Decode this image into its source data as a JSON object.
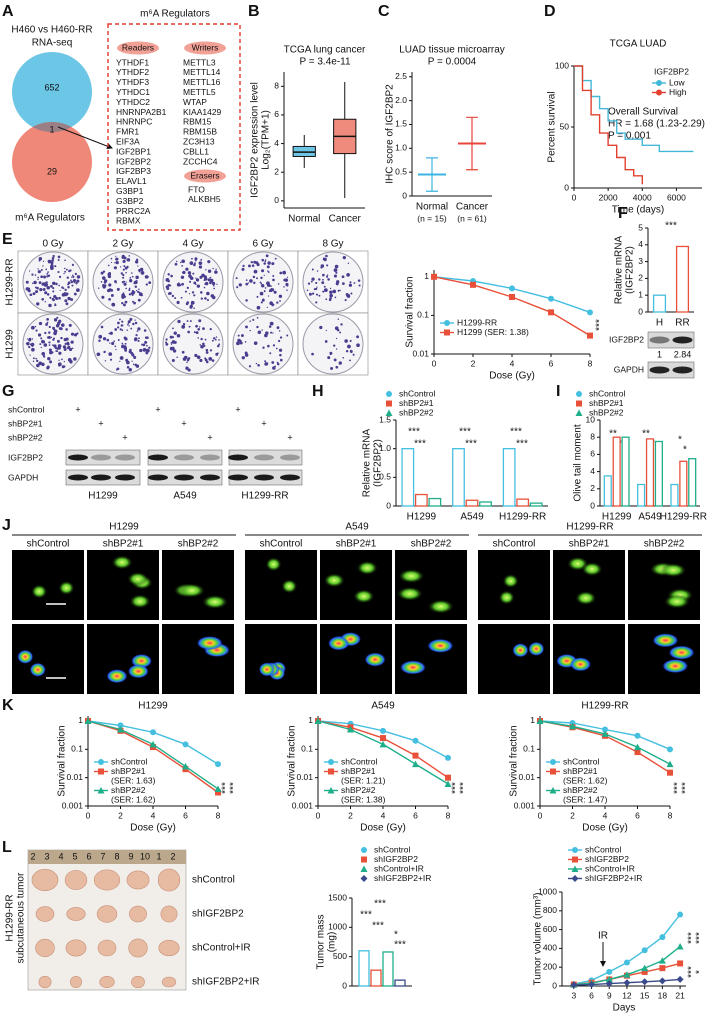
{
  "figure": {
    "A": {
      "label": "A",
      "heading": [
        "H460 vs H460-RR",
        "RNA-seq"
      ],
      "venn": [
        652,
        1,
        29
      ],
      "venn_label": "m⁶A Regulators",
      "box_title": "m⁶A Regulators",
      "highlight": "IGF2BP2",
      "groups": [
        {
          "name": "Readers",
          "items": [
            "YTHDF1",
            "YTHDF2",
            "YTHDF3",
            "YTHDC1",
            "YTHDC2",
            "HNRNPA2B1",
            "HNRNPC",
            "FMR1",
            "EIF3A",
            "IGF2BP1",
            "IGF2BP2",
            "IGF2BP3",
            "ELAVL1",
            "G3BP1",
            "G3BP2",
            "PRRC2A",
            "RBMX"
          ]
        },
        {
          "name": "Writers",
          "items": [
            "METTL3",
            "METTL14",
            "METTL16",
            "METTL5",
            "WTAP",
            "KIAA1429",
            "RBM15",
            "RBM15B",
            "ZC3H13",
            "CBLL1",
            "ZCCHC4"
          ]
        },
        {
          "name": "Erasers",
          "items": [
            "FTO",
            "ALKBH5"
          ]
        }
      ]
    },
    "E": {
      "label": "E",
      "doses": [
        "0 Gy",
        "2 Gy",
        "4 Gy",
        "6 Gy",
        "8 Gy"
      ],
      "rows": [
        "H1299-RR",
        "H1299"
      ]
    },
    "F": {
      "blot": [
        "IGF2BP2",
        "GAPDH"
      ],
      "quant": [
        1,
        2.84
      ]
    },
    "G": {
      "label": "G",
      "conditions": [
        "shControl",
        "shBP2#1",
        "shBP2#2"
      ],
      "mark": "+",
      "blot": [
        "IGF2BP2",
        "GAPDH"
      ],
      "cells": [
        "H1299",
        "A549",
        "H1299-RR"
      ]
    },
    "J": {
      "label": "J",
      "cells": [
        "H1299",
        "A549",
        "H1299-RR"
      ],
      "conditions": [
        "shControl",
        "shBP2#1",
        "shBP2#2"
      ]
    },
    "K": {
      "label": "K"
    },
    "L": {
      "label": "L",
      "side_label": [
        "H1299-RR",
        "subcutaneous tumor"
      ],
      "ruler": [
        "2",
        "3",
        "4",
        "5",
        "6",
        "7",
        "8",
        "9",
        "10",
        "1",
        "2"
      ],
      "groups": [
        "shControl",
        "shIGF2BP2",
        "shControl+IR",
        "shIGF2BP2+IR"
      ]
    }
  },
  "chart_data": [
    {
      "type": "box",
      "label": "B",
      "title": "TCGA lung cancer",
      "ylabel": [
        "IGF2BP2 expression level",
        "Log₂(TPM+1)"
      ],
      "categories": [
        "Normal",
        "Cancer"
      ],
      "boxes": [
        {
          "min": 2.3,
          "q1": 3.1,
          "median": 3.4,
          "q3": 3.8,
          "max": 4.6
        },
        {
          "min": 0.2,
          "q1": 3.3,
          "median": 4.5,
          "q3": 5.7,
          "max": 8.3
        }
      ],
      "colors": [
        "#6ec6e6",
        "#ee8b7c"
      ],
      "ylim": [
        -0.5,
        9
      ],
      "yticks": [
        0,
        2,
        4,
        6,
        8
      ],
      "annotations": [
        "P = 3.4e-11"
      ]
    },
    {
      "type": "meansd",
      "label": "C",
      "title": "LUAD tissue microarray",
      "ylabel": "IHC score of IGF2BP2",
      "categories": [
        "Normal",
        "Cancer"
      ],
      "n_labels": [
        "(n = 15)",
        "(n = 61)"
      ],
      "means": [
        0.45,
        1.1
      ],
      "sd": [
        0.35,
        0.55
      ],
      "colors": [
        "#3bb4e5",
        "#e8443a"
      ],
      "ylim": [
        0,
        2.6
      ],
      "yticks": [
        0,
        0.5,
        {
          "value": 1,
          "label": "1.0"
        },
        1.5,
        {
          "value": 2,
          "label": "2.0"
        },
        2.5
      ],
      "annotations": [
        "P = 0.0004"
      ]
    },
    {
      "type": "step",
      "label": "D",
      "title": "TCGA LUAD",
      "ylabel": "Percent survival",
      "xlabel": "Time (days)",
      "legend_title": "IGF2BP2",
      "series": [
        {
          "name": "Low",
          "color": "#45b8d8",
          "marker": "circle",
          "x": [
            0,
            500,
            1000,
            1500,
            2000,
            2500,
            3000,
            4000,
            5000,
            7000
          ],
          "values": [
            100,
            88,
            75,
            65,
            55,
            45,
            40,
            35,
            30,
            30
          ]
        },
        {
          "name": "High",
          "color": "#e3402f",
          "marker": "circle",
          "x": [
            0,
            500,
            1000,
            1500,
            2000,
            2500,
            3000,
            3500,
            4000
          ],
          "values": [
            100,
            80,
            60,
            45,
            35,
            25,
            15,
            10,
            3
          ]
        }
      ],
      "xlim": [
        0,
        7500
      ],
      "xticks": [
        0,
        2000,
        4000,
        6000
      ],
      "ylim": [
        0,
        100
      ],
      "yticks": [
        0,
        50,
        100
      ],
      "annotations": [
        "Overall Survival",
        "HR = 1.68 (1.23-2.29)",
        "P = 0.001"
      ]
    },
    {
      "type": "line",
      "log": true,
      "ylabel": "Survival fraction",
      "xlabel": "Dose (Gy)",
      "x": [
        0,
        2,
        4,
        6,
        8
      ],
      "series": [
        {
          "name": "H1299-RR",
          "color": "#45bfe0",
          "marker": "circle",
          "values": [
            1,
            0.78,
            0.5,
            0.27,
            0.12
          ]
        },
        {
          "name": "H1299 (SER: 1.38)",
          "color": "#e8503a",
          "marker": "square",
          "values": [
            1,
            0.62,
            0.3,
            0.12,
            0.03
          ]
        }
      ],
      "xlim": [
        0,
        8
      ],
      "xticks": [
        0,
        2,
        4,
        6,
        8
      ],
      "ylim": [
        0.01,
        1.5
      ],
      "yticks": [
        0.01,
        0.1,
        1
      ],
      "annotations": [
        "***"
      ]
    },
    {
      "type": "bar",
      "label": "F",
      "ylabel": [
        "Relative mRNA",
        "(IGF2BP2)"
      ],
      "categories": [
        "H",
        "RR"
      ],
      "values": [
        1,
        3.9
      ],
      "colors": [
        "#45bfe0",
        "#e8503a"
      ],
      "ylim": [
        0,
        5
      ],
      "yticks": [
        0,
        1,
        2,
        3,
        4,
        5
      ],
      "annotations": [
        "***"
      ]
    },
    {
      "type": "bar",
      "label": "H",
      "ylabel": [
        "Relative mRNA",
        "(IGF2BP2)"
      ],
      "categories": [
        "H1299",
        "A549",
        "H1299-RR"
      ],
      "series": [
        {
          "name": "shControl",
          "color": "#45bfe0",
          "marker": "circle",
          "values": [
            1,
            1,
            1
          ]
        },
        {
          "name": "shBP2#1",
          "color": "#e8503a",
          "marker": "square",
          "values": [
            0.2,
            0.1,
            0.12
          ]
        },
        {
          "name": "shBP2#2",
          "color": "#1fae8a",
          "marker": "triangle",
          "values": [
            0.13,
            0.07,
            0.05
          ]
        }
      ],
      "ylim": [
        0,
        1.5
      ],
      "yticks": [
        0,
        0.5,
        {
          "value": 1,
          "label": "1.0"
        },
        1.5
      ],
      "annotations": [
        "***",
        "***",
        "***",
        "***",
        "***",
        "***"
      ]
    },
    {
      "type": "bar",
      "label": "I",
      "ylabel": "Olive tail moment",
      "categories": [
        "H1299",
        "A549",
        "H1299-RR"
      ],
      "series": [
        {
          "name": "shControl",
          "color": "#45bfe0",
          "marker": "circle",
          "values": [
            3.5,
            2.5,
            2.5
          ]
        },
        {
          "name": "shBP2#1",
          "color": "#e8503a",
          "marker": "square",
          "values": [
            8,
            7.8,
            5.2
          ]
        },
        {
          "name": "shBP2#2",
          "color": "#1fae8a",
          "marker": "triangle",
          "values": [
            8,
            7.5,
            5.5
          ]
        }
      ],
      "ylim": [
        0,
        10
      ],
      "yticks": [
        0,
        2,
        4,
        6,
        8,
        10
      ],
      "annotations": [
        "**",
        "**",
        "**",
        "**",
        "*",
        "*"
      ]
    },
    {
      "type": "line",
      "log": true,
      "title": "H1299",
      "ylabel": "Survival fraction",
      "xlabel": "Dose (Gy)",
      "x": [
        0,
        2,
        4,
        6,
        8
      ],
      "series": [
        {
          "name": "shControl",
          "color": "#45bfe0",
          "marker": "circle",
          "values": [
            1,
            0.7,
            0.4,
            0.15,
            0.03
          ]
        },
        {
          "name": "shBP2#1",
          "ser_label": "(SER: 1.63)",
          "color": "#e8503a",
          "marker": "square",
          "values": [
            1,
            0.45,
            0.12,
            0.02,
            0.003
          ]
        },
        {
          "name": "shBP2#2",
          "ser_label": "(SER: 1.62)",
          "color": "#1fae8a",
          "marker": "triangle",
          "values": [
            1,
            0.5,
            0.15,
            0.025,
            0.004
          ]
        }
      ],
      "xlim": [
        0,
        8
      ],
      "xticks": [
        0,
        2,
        4,
        6,
        8
      ],
      "ylim": [
        0.001,
        1.5
      ],
      "yticks": [
        0.001,
        0.01,
        0.1,
        1
      ],
      "annotations": [
        "***",
        "***"
      ]
    },
    {
      "type": "line",
      "log": true,
      "title": "A549",
      "ylabel": "Survival fraction",
      "xlabel": "Dose (Gy)",
      "x": [
        0,
        2,
        4,
        6,
        8
      ],
      "series": [
        {
          "name": "shControl",
          "color": "#45bfe0",
          "marker": "circle",
          "values": [
            1,
            0.8,
            0.45,
            0.2,
            0.05
          ]
        },
        {
          "name": "shBP2#1",
          "ser_label": "(SER: 1.21)",
          "color": "#e8503a",
          "marker": "square",
          "values": [
            1,
            0.6,
            0.25,
            0.06,
            0.01
          ]
        },
        {
          "name": "shBP2#2",
          "ser_label": "(SER: 1.38)",
          "color": "#1fae8a",
          "marker": "triangle",
          "values": [
            1,
            0.5,
            0.15,
            0.03,
            0.006
          ]
        }
      ],
      "xlim": [
        0,
        8
      ],
      "xticks": [
        0,
        2,
        4,
        6,
        8
      ],
      "ylim": [
        0.001,
        1.5
      ],
      "yticks": [
        0.001,
        0.01,
        0.1,
        1
      ],
      "annotations": [
        "***",
        "***"
      ]
    },
    {
      "type": "line",
      "log": true,
      "title": "H1299-RR",
      "ylabel": "Survival fraction",
      "xlabel": "Dose (Gy)",
      "x": [
        0,
        2,
        4,
        6,
        8
      ],
      "series": [
        {
          "name": "shControl",
          "color": "#45bfe0",
          "marker": "circle",
          "values": [
            1,
            0.85,
            0.5,
            0.3,
            0.1
          ]
        },
        {
          "name": "shBP2#1",
          "ser_label": "(SER: 1.62)",
          "color": "#e8503a",
          "marker": "square",
          "values": [
            1,
            0.6,
            0.3,
            0.08,
            0.015
          ]
        },
        {
          "name": "shBP2#2",
          "ser_label": "(SER: 1.47)",
          "color": "#1fae8a",
          "marker": "triangle",
          "values": [
            1,
            0.65,
            0.35,
            0.12,
            0.03
          ]
        }
      ],
      "xlim": [
        0,
        8
      ],
      "xticks": [
        0,
        2,
        4,
        6,
        8
      ],
      "ylim": [
        0.001,
        1.5
      ],
      "yticks": [
        0.001,
        0.01,
        0.1,
        1
      ],
      "annotations": [
        "***",
        "***"
      ]
    },
    {
      "type": "bar",
      "ylabel": [
        "Tumor mass",
        "(mg)"
      ],
      "categories": [
        null
      ],
      "series": [
        {
          "name": "shControl",
          "color": "#45bfe0",
          "marker": "circle",
          "values": [
            600
          ]
        },
        {
          "name": "shIGF2BP2",
          "color": "#e8503a",
          "marker": "square",
          "values": [
            270
          ]
        },
        {
          "name": "shControl+IR",
          "color": "#1fae8a",
          "marker": "triangle",
          "values": [
            580
          ]
        },
        {
          "name": "shIGF2BP2+IR",
          "color": "#3a4a8a",
          "marker": "diamond",
          "values": [
            100
          ]
        }
      ],
      "ylim": [
        0,
        1500
      ],
      "yticks": [
        0,
        500,
        1000,
        1500
      ],
      "annotations": [
        "***",
        "***",
        "***",
        "*",
        "***"
      ]
    },
    {
      "type": "line",
      "ylabel": "Tumor volume (mm³)",
      "xlabel": "Days",
      "x": [
        3,
        6,
        9,
        12,
        15,
        18,
        21
      ],
      "series": [
        {
          "name": "shControl",
          "color": "#45bfe0",
          "marker": "circle",
          "values": [
            20,
            60,
            150,
            250,
            380,
            520,
            760
          ]
        },
        {
          "name": "shIGF2BP2",
          "color": "#e8503a",
          "marker": "square",
          "values": [
            15,
            35,
            70,
            110,
            150,
            190,
            240
          ]
        },
        {
          "name": "shControl+IR",
          "color": "#1fae8a",
          "marker": "triangle",
          "values": [
            15,
            30,
            70,
            120,
            190,
            270,
            420
          ]
        },
        {
          "name": "shIGF2BP2+IR",
          "color": "#3a4a8a",
          "marker": "diamond",
          "values": [
            10,
            15,
            25,
            35,
            45,
            55,
            70
          ]
        }
      ],
      "xlim": [
        1,
        22
      ],
      "xticks": [
        3,
        6,
        9,
        12,
        15,
        18,
        21
      ],
      "ylim": [
        0,
        1000
      ],
      "yticks": [
        0,
        200,
        400,
        600,
        800,
        1000
      ],
      "annotations": [
        "***",
        "***",
        "***",
        "*",
        "IR"
      ]
    }
  ]
}
